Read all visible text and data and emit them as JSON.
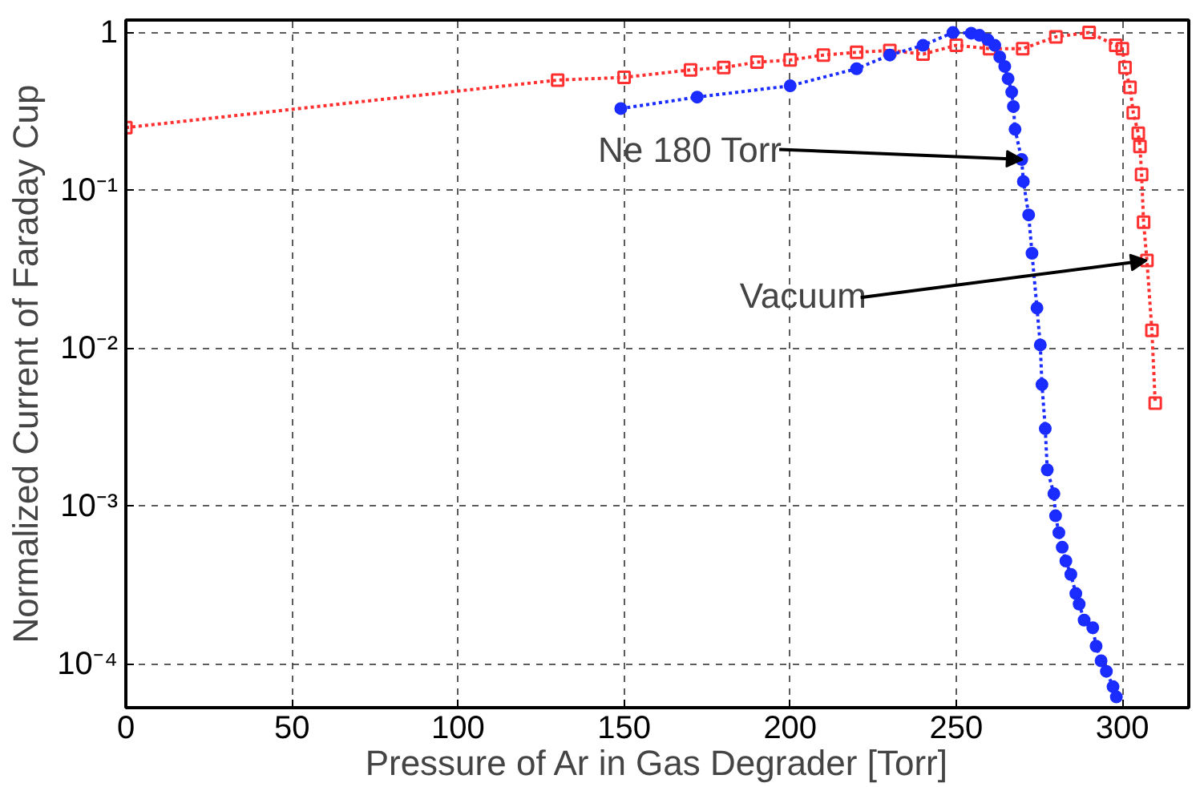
{
  "chart_data": {
    "type": "line",
    "xlabel": "Pressure of Ar in Gas Degrader [Torr]",
    "ylabel": "Normalized Current of Faraday Cup",
    "log": "y",
    "grid": true,
    "line_style": "dotted",
    "xlim": [
      0,
      320
    ],
    "ylim": [
      5.3e-05,
      1.2
    ],
    "xticks": [
      0,
      50,
      100,
      150,
      200,
      250,
      300
    ],
    "yticks": [
      {
        "value": 0.0001,
        "label": "10⁻⁴"
      },
      {
        "value": 0.001,
        "label": "10⁻³"
      },
      {
        "value": 0.01,
        "label": "10⁻²"
      },
      {
        "value": 0.1,
        "label": "10⁻¹"
      },
      1
    ],
    "series": [
      {
        "color": "#ff3030",
        "marker": "square",
        "x": [
          0,
          130,
          150,
          170,
          180,
          190,
          200,
          210,
          220,
          230,
          240,
          250,
          260,
          270,
          280,
          290,
          298,
          300,
          300.8,
          302.3,
          303.3,
          304.8,
          305.3,
          305.8,
          306.4,
          307.4,
          308.9,
          309.9
        ],
        "values": [
          0.25,
          0.5,
          0.52,
          0.58,
          0.6,
          0.65,
          0.67,
          0.72,
          0.75,
          0.77,
          0.73,
          0.83,
          0.79,
          0.79,
          0.94,
          1.0,
          0.83,
          0.79,
          0.6,
          0.45,
          0.31,
          0.23,
          0.19,
          0.126,
          0.063,
          0.036,
          0.013,
          0.0045
        ]
      },
      {
        "color": "#1a2cff",
        "marker": "circle",
        "x": [
          149,
          172,
          200,
          220,
          230,
          240,
          249,
          254.5,
          257,
          259.5,
          261.6,
          263.1,
          264.6,
          265.6,
          266.7,
          267.2,
          267.7,
          269.7,
          270.2,
          271.8,
          272.8,
          274.3,
          275.3,
          275.8,
          276.8,
          277.4,
          279.4,
          279.9,
          280.9,
          281.9,
          283,
          284.5,
          286,
          287,
          288.5,
          291.1,
          292.1,
          293.6,
          295.2,
          297.2,
          298.2
        ],
        "values": [
          0.33,
          0.39,
          0.46,
          0.59,
          0.72,
          0.83,
          1.0,
          0.99,
          0.96,
          0.9,
          0.83,
          0.7,
          0.61,
          0.51,
          0.42,
          0.34,
          0.244,
          0.157,
          0.114,
          0.07,
          0.04,
          0.018,
          0.0105,
          0.0059,
          0.0031,
          0.0017,
          0.0012,
          0.00087,
          0.00068,
          0.00055,
          0.00045,
          0.00037,
          0.00028,
          0.00024,
          0.00019,
          0.00017,
          0.00013,
          0.000105,
          9e-05,
          7.2e-05,
          6.2e-05
        ]
      }
    ],
    "annotations": [
      {
        "text": "Ne 180 Torr",
        "x": 270,
        "y": 0.157
      },
      {
        "text": "Vacuum",
        "x": 307.4,
        "y": 0.036
      }
    ]
  }
}
